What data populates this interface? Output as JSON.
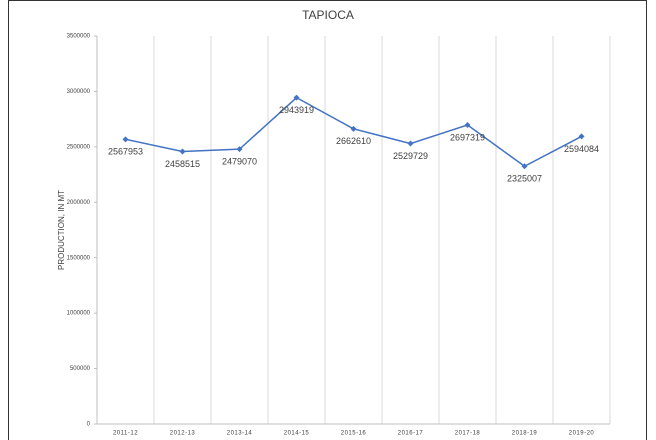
{
  "chart_data": {
    "type": "line",
    "title": "TAPIOCA",
    "y_label": "PRODUCTION, IN MT",
    "categories": [
      "2011-12",
      "2012-13",
      "2013-14",
      "2014-15",
      "2015-16",
      "2016-17",
      "2017-18",
      "2018-19",
      "2019-20"
    ],
    "values": [
      2567953,
      2458515,
      2479070,
      2943919,
      2662610,
      2529729,
      2697319,
      2325007,
      2594084
    ],
    "color": "#4472c4",
    "ylim": [
      0,
      3500000
    ],
    "yticks": [
      0,
      500000,
      1000000,
      1500000,
      2000000,
      2500000,
      3000000,
      3500000
    ],
    "grid": "x"
  }
}
